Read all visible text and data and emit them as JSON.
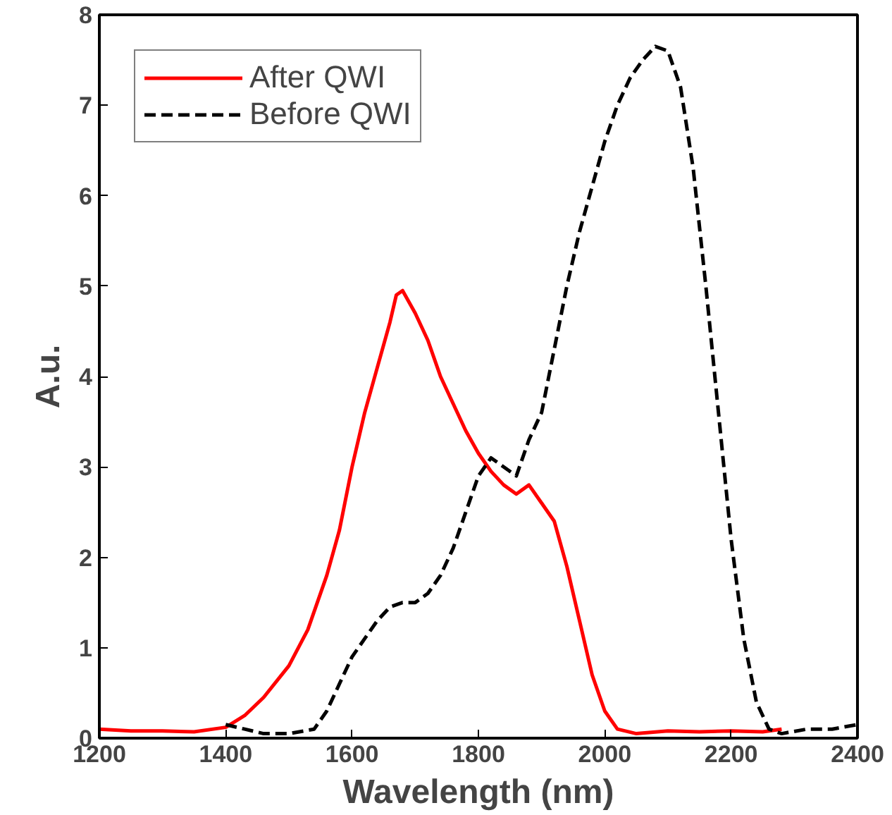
{
  "chart_data": {
    "type": "line",
    "xlabel": "Wavelength (nm)",
    "ylabel": "A.u.",
    "xlim": [
      1200,
      2400
    ],
    "xticks": [
      1200,
      1400,
      1600,
      1800,
      2000,
      2200,
      2400
    ],
    "ylim": [
      0,
      8
    ],
    "yticks": [
      0,
      1,
      2,
      3,
      4,
      5,
      6,
      7,
      8
    ],
    "grid": false,
    "legend": "top left",
    "series": [
      {
        "name": "After QWI",
        "color": "#ff0000",
        "line_style": "solid",
        "x": [
          1200,
          1250,
          1300,
          1350,
          1400,
          1430,
          1460,
          1500,
          1530,
          1560,
          1580,
          1600,
          1620,
          1640,
          1660,
          1670,
          1680,
          1700,
          1720,
          1740,
          1760,
          1780,
          1800,
          1820,
          1840,
          1860,
          1880,
          1900,
          1920,
          1940,
          1960,
          1980,
          2000,
          2020,
          2050,
          2100,
          2150,
          2200,
          2250,
          2280
        ],
        "values": [
          0.1,
          0.08,
          0.08,
          0.07,
          0.12,
          0.25,
          0.45,
          0.8,
          1.2,
          1.8,
          2.3,
          3.0,
          3.6,
          4.1,
          4.6,
          4.9,
          4.95,
          4.7,
          4.4,
          4.0,
          3.7,
          3.4,
          3.15,
          2.95,
          2.8,
          2.7,
          2.8,
          2.6,
          2.4,
          1.9,
          1.3,
          0.7,
          0.3,
          0.1,
          0.05,
          0.08,
          0.07,
          0.08,
          0.07,
          0.1
        ]
      },
      {
        "name": "Before QWI",
        "color": "#000000",
        "line_style": "dashed",
        "x": [
          1400,
          1430,
          1460,
          1500,
          1540,
          1560,
          1580,
          1600,
          1620,
          1640,
          1660,
          1680,
          1700,
          1720,
          1740,
          1760,
          1780,
          1800,
          1820,
          1840,
          1860,
          1880,
          1900,
          1920,
          1940,
          1960,
          1980,
          2000,
          2020,
          2040,
          2060,
          2080,
          2100,
          2120,
          2140,
          2160,
          2180,
          2200,
          2220,
          2240,
          2260,
          2280,
          2320,
          2360,
          2400
        ],
        "values": [
          0.15,
          0.1,
          0.05,
          0.05,
          0.1,
          0.3,
          0.6,
          0.9,
          1.1,
          1.3,
          1.45,
          1.5,
          1.5,
          1.6,
          1.8,
          2.1,
          2.5,
          2.9,
          3.1,
          3.0,
          2.9,
          3.3,
          3.6,
          4.3,
          5.0,
          5.6,
          6.1,
          6.6,
          7.0,
          7.3,
          7.5,
          7.65,
          7.6,
          7.2,
          6.3,
          5.0,
          3.6,
          2.2,
          1.1,
          0.4,
          0.1,
          0.05,
          0.1,
          0.1,
          0.15
        ]
      }
    ]
  }
}
